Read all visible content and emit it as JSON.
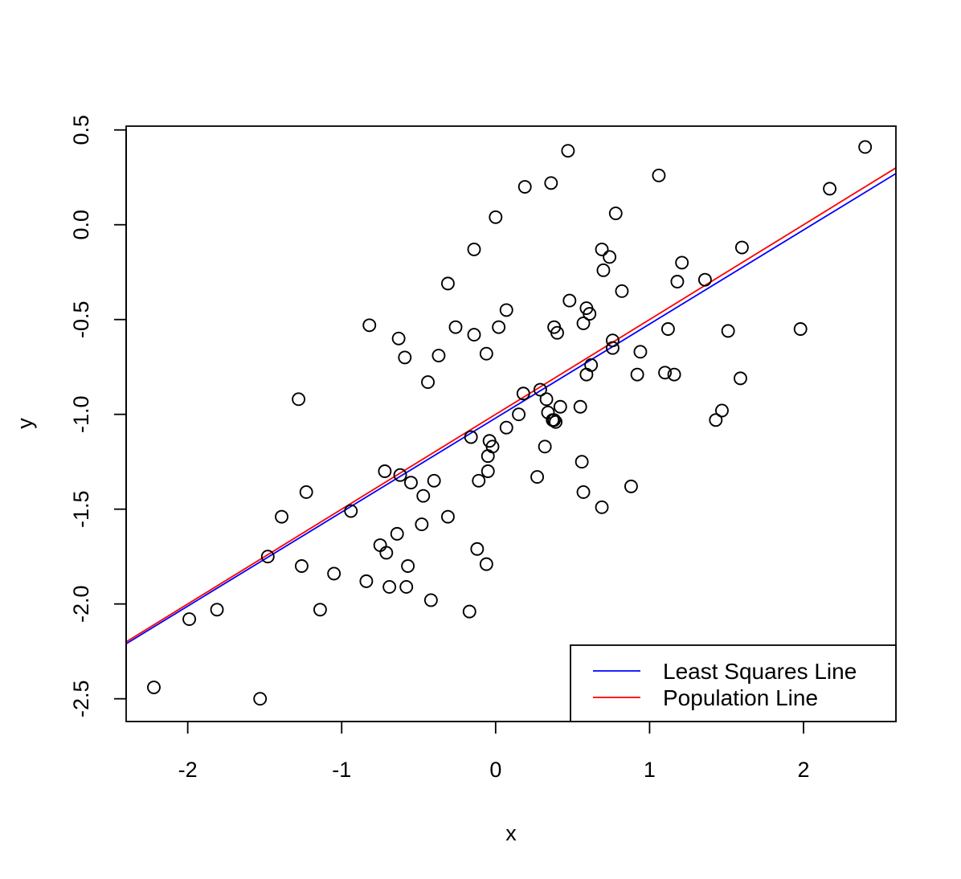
{
  "chart_data": {
    "type": "scatter",
    "title": "",
    "xlabel": "x",
    "ylabel": "y",
    "xlim": [
      -2.4,
      2.6
    ],
    "ylim": [
      -2.62,
      0.52
    ],
    "x_ticks": [
      -2,
      -1,
      0,
      1,
      2
    ],
    "x_tick_labels": [
      "-2",
      "-1",
      "0",
      "1",
      "2"
    ],
    "y_ticks": [
      -2.5,
      -2.0,
      -1.5,
      -1.0,
      -0.5,
      0.0,
      0.5
    ],
    "y_tick_labels": [
      "-2.5",
      "-2.0",
      "-1.5",
      "-1.0",
      "-0.5",
      "0.0",
      "0.5"
    ],
    "grid": false,
    "legend_position": "bottom-right",
    "points": {
      "x": [
        -2.22,
        -1.99,
        -1.81,
        -1.53,
        -1.48,
        -1.39,
        -1.28,
        -1.26,
        -1.23,
        -1.14,
        -1.05,
        -0.94,
        -0.84,
        -0.82,
        -0.75,
        -0.72,
        -0.71,
        -0.69,
        -0.64,
        -0.63,
        -0.62,
        -0.59,
        -0.58,
        -0.57,
        -0.55,
        -0.48,
        -0.47,
        -0.44,
        -0.42,
        -0.4,
        -0.37,
        -0.31,
        -0.31,
        -0.26,
        -0.17,
        -0.16,
        -0.14,
        -0.14,
        -0.12,
        -0.11,
        -0.06,
        -0.06,
        -0.05,
        -0.05,
        -0.04,
        -0.02,
        0.0,
        0.02,
        0.07,
        0.07,
        0.15,
        0.18,
        0.19,
        0.27,
        0.29,
        0.32,
        0.33,
        0.34,
        0.36,
        0.37,
        0.38,
        0.38,
        0.39,
        0.4,
        0.42,
        0.47,
        0.48,
        0.55,
        0.56,
        0.57,
        0.57,
        0.59,
        0.59,
        0.61,
        0.62,
        0.69,
        0.69,
        0.7,
        0.74,
        0.76,
        0.76,
        0.78,
        0.82,
        0.88,
        0.92,
        0.94,
        1.06,
        1.1,
        1.12,
        1.16,
        1.18,
        1.21,
        1.36,
        1.43,
        1.47,
        1.51,
        1.59,
        1.6,
        1.98,
        2.17,
        2.4
      ],
      "y": [
        -2.44,
        -2.08,
        -2.03,
        -2.5,
        -1.75,
        -1.54,
        -0.92,
        -1.8,
        -1.41,
        -2.03,
        -1.84,
        -1.51,
        -1.88,
        -0.53,
        -1.69,
        -1.3,
        -1.73,
        -1.91,
        -1.63,
        -0.6,
        -1.32,
        -0.7,
        -1.91,
        -1.8,
        -1.36,
        -1.58,
        -1.43,
        -0.83,
        -1.98,
        -1.35,
        -0.69,
        -1.54,
        -0.31,
        -0.54,
        -2.04,
        -1.12,
        -0.13,
        -0.58,
        -1.71,
        -1.35,
        -0.68,
        -1.79,
        -1.3,
        -1.22,
        -1.14,
        -1.17,
        0.04,
        -0.54,
        -0.45,
        -1.07,
        -1.0,
        -0.89,
        0.2,
        -1.33,
        -0.87,
        -1.17,
        -0.92,
        -0.99,
        0.22,
        -1.03,
        -0.54,
        -1.03,
        -1.04,
        -0.57,
        -0.96,
        0.39,
        -0.4,
        -0.96,
        -1.25,
        -0.52,
        -1.41,
        -0.44,
        -0.79,
        -0.47,
        -0.74,
        -0.13,
        -1.49,
        -0.24,
        -0.17,
        -0.61,
        -0.65,
        0.06,
        -0.35,
        -1.38,
        -0.79,
        -0.67,
        0.26,
        -0.78,
        -0.55,
        -0.79,
        -0.3,
        -0.2,
        -0.29,
        -1.03,
        -0.98,
        -0.56,
        -0.81,
        -0.12,
        -0.55,
        0.19,
        0.41
      ]
    },
    "lines": [
      {
        "name": "Least Squares Line",
        "color": "#0000ff",
        "x": [
          -2.4,
          2.6
        ],
        "y": [
          -2.21,
          0.27
        ]
      },
      {
        "name": "Population Line",
        "color": "#ff0000",
        "x": [
          -2.4,
          2.6
        ],
        "y": [
          -2.2,
          0.3
        ]
      }
    ]
  }
}
